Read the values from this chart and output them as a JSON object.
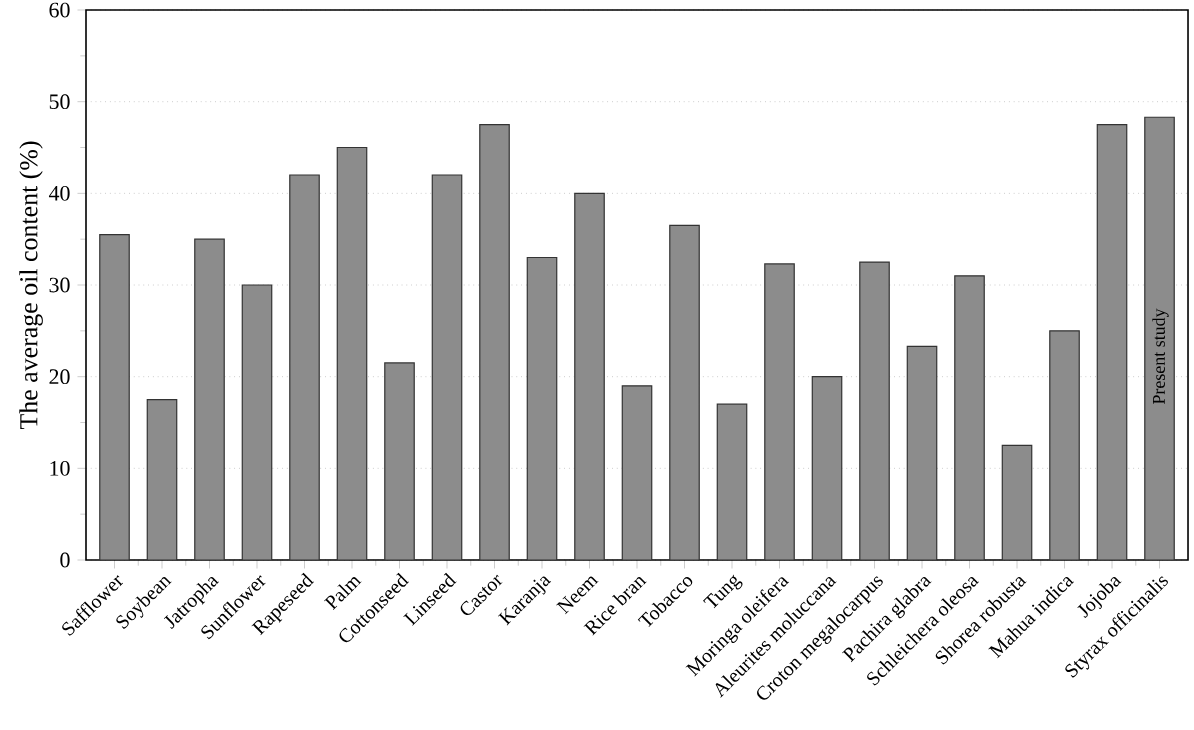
{
  "chart_data": {
    "type": "bar",
    "ylabel": "The average oil content (%)",
    "categories": [
      "Safflower",
      "Soybean",
      "Jatropha",
      "Sunflower",
      "Rapeseed",
      "Palm",
      "Cottonseed",
      "Linseed",
      "Castor",
      "Karanja",
      "Neem",
      "Rice bran",
      "Tobacco",
      "Tung",
      "Moringa oleifera",
      "Aleurites moluccana",
      "Croton megalocarpus",
      "Pachira glabra",
      "Schleichera oleosa",
      "Shorea robusta",
      "Mahua indica",
      "Jojoba",
      "Styrax officinalis"
    ],
    "values": [
      35.5,
      17.5,
      35,
      30,
      42,
      45,
      21.5,
      42,
      47.5,
      33,
      40,
      19,
      36.5,
      17,
      32.3,
      20,
      32.5,
      23.3,
      31,
      12.5,
      25,
      47.5,
      48.3
    ],
    "color": "#8c8c8c",
    "ylim": [
      0,
      60
    ],
    "yticks": [
      0,
      10,
      20,
      30,
      40,
      50,
      60
    ],
    "grid": "y",
    "annotations": [
      "Present study"
    ]
  }
}
